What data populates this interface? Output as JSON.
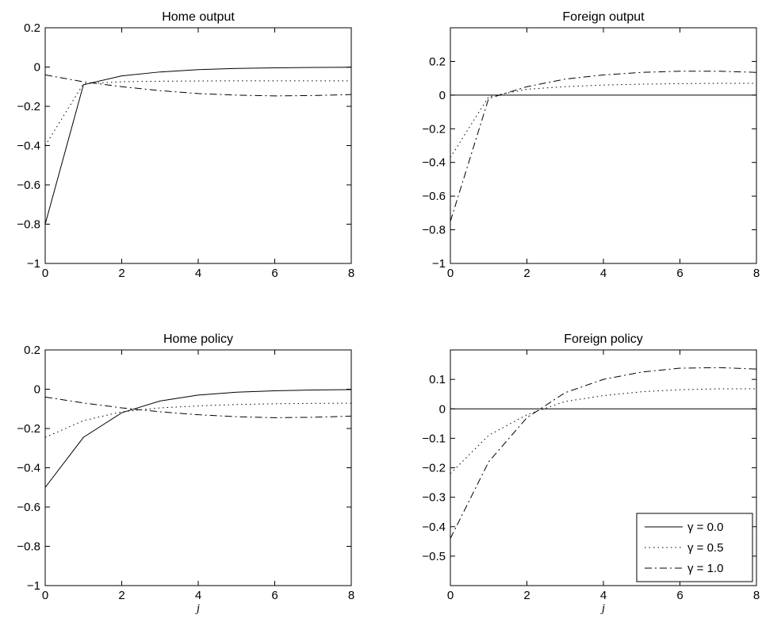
{
  "chart_data": [
    {
      "type": "line",
      "title": "Home output",
      "xlabel": "",
      "ylabel": "",
      "xlim": [
        0,
        8
      ],
      "ylim": [
        -1,
        0.2
      ],
      "xticks": [
        0,
        2,
        4,
        6,
        8
      ],
      "yticks": [
        -1,
        -0.8,
        -0.6,
        -0.4,
        -0.2,
        0,
        0.2
      ],
      "ytick_labels": [
        "−1",
        "−0.8",
        "−0.6",
        "−0.4",
        "−0.2",
        "0",
        "0.2"
      ],
      "zero_line": false,
      "x": [
        0,
        1,
        2,
        3,
        4,
        5,
        6,
        7,
        8
      ],
      "series": [
        {
          "name": "γ = 0.0",
          "style": "solid",
          "values": [
            -0.8,
            -0.09,
            -0.045,
            -0.025,
            -0.013,
            -0.007,
            -0.004,
            -0.002,
            -0.001
          ]
        },
        {
          "name": "γ = 0.5",
          "style": "dotted",
          "values": [
            -0.4,
            -0.085,
            -0.075,
            -0.072,
            -0.071,
            -0.07,
            -0.07,
            -0.07,
            -0.07
          ]
        },
        {
          "name": "γ = 1.0",
          "style": "dashdot",
          "values": [
            -0.04,
            -0.075,
            -0.1,
            -0.12,
            -0.135,
            -0.143,
            -0.147,
            -0.145,
            -0.14
          ]
        }
      ]
    },
    {
      "type": "line",
      "title": "Foreign output",
      "xlabel": "",
      "ylabel": "",
      "xlim": [
        0,
        8
      ],
      "ylim": [
        -1,
        0.4
      ],
      "xticks": [
        0,
        2,
        4,
        6,
        8
      ],
      "yticks": [
        -1,
        -0.8,
        -0.6,
        -0.4,
        -0.2,
        0,
        0.2
      ],
      "ytick_labels": [
        "−1",
        "−0.8",
        "−0.6",
        "−0.4",
        "−0.2",
        "0",
        "0.2"
      ],
      "zero_line": true,
      "x": [
        0,
        1,
        2,
        3,
        4,
        5,
        6,
        7,
        8
      ],
      "series": [
        {
          "name": "γ = 0.0",
          "style": "solid",
          "values": [
            0,
            0,
            0,
            0,
            0,
            0,
            0,
            0,
            0
          ]
        },
        {
          "name": "γ = 0.5",
          "style": "dotted",
          "values": [
            -0.37,
            -0.01,
            0.035,
            0.05,
            0.06,
            0.065,
            0.068,
            0.07,
            0.07
          ]
        },
        {
          "name": "γ = 1.0",
          "style": "dashdot",
          "values": [
            -0.75,
            -0.02,
            0.05,
            0.095,
            0.12,
            0.135,
            0.142,
            0.142,
            0.135
          ]
        }
      ]
    },
    {
      "type": "line",
      "title": "Home policy",
      "xlabel": "j",
      "ylabel": "",
      "xlim": [
        0,
        8
      ],
      "ylim": [
        -1,
        0.2
      ],
      "xticks": [
        0,
        2,
        4,
        6,
        8
      ],
      "yticks": [
        -1,
        -0.8,
        -0.6,
        -0.4,
        -0.2,
        0,
        0.2
      ],
      "ytick_labels": [
        "−1",
        "−0.8",
        "−0.6",
        "−0.4",
        "−0.2",
        "0",
        "0.2"
      ],
      "zero_line": false,
      "x": [
        0,
        1,
        2,
        3,
        4,
        5,
        6,
        7,
        8
      ],
      "series": [
        {
          "name": "γ = 0.0",
          "style": "solid",
          "values": [
            -0.5,
            -0.245,
            -0.12,
            -0.06,
            -0.03,
            -0.015,
            -0.008,
            -0.004,
            -0.002
          ]
        },
        {
          "name": "γ = 0.5",
          "style": "dotted",
          "values": [
            -0.245,
            -0.16,
            -0.115,
            -0.095,
            -0.085,
            -0.078,
            -0.074,
            -0.072,
            -0.071
          ]
        },
        {
          "name": "γ = 1.0",
          "style": "dashdot",
          "values": [
            -0.04,
            -0.07,
            -0.095,
            -0.115,
            -0.13,
            -0.14,
            -0.145,
            -0.143,
            -0.137
          ]
        }
      ]
    },
    {
      "type": "line",
      "title": "Foreign policy",
      "xlabel": "j",
      "ylabel": "",
      "xlim": [
        0,
        8
      ],
      "ylim": [
        -0.6,
        0.2
      ],
      "xticks": [
        0,
        2,
        4,
        6,
        8
      ],
      "yticks": [
        -0.5,
        -0.4,
        -0.3,
        -0.2,
        -0.1,
        0,
        0.1
      ],
      "ytick_labels": [
        "−0.5",
        "−0.4",
        "−0.3",
        "−0.2",
        "−0.1",
        "0",
        "0.1"
      ],
      "zero_line": true,
      "legend_position": "bottom-right",
      "x": [
        0,
        1,
        2,
        3,
        4,
        5,
        6,
        7,
        8
      ],
      "series": [
        {
          "name": "γ = 0.0",
          "style": "solid",
          "values": [
            0,
            0,
            0,
            0,
            0,
            0,
            0,
            0,
            0
          ]
        },
        {
          "name": "γ = 0.5",
          "style": "dotted",
          "values": [
            -0.22,
            -0.09,
            -0.02,
            0.025,
            0.045,
            0.058,
            0.065,
            0.068,
            0.068
          ]
        },
        {
          "name": "γ = 1.0",
          "style": "dashdot",
          "values": [
            -0.44,
            -0.18,
            -0.03,
            0.055,
            0.1,
            0.125,
            0.138,
            0.14,
            0.135
          ]
        }
      ]
    }
  ]
}
